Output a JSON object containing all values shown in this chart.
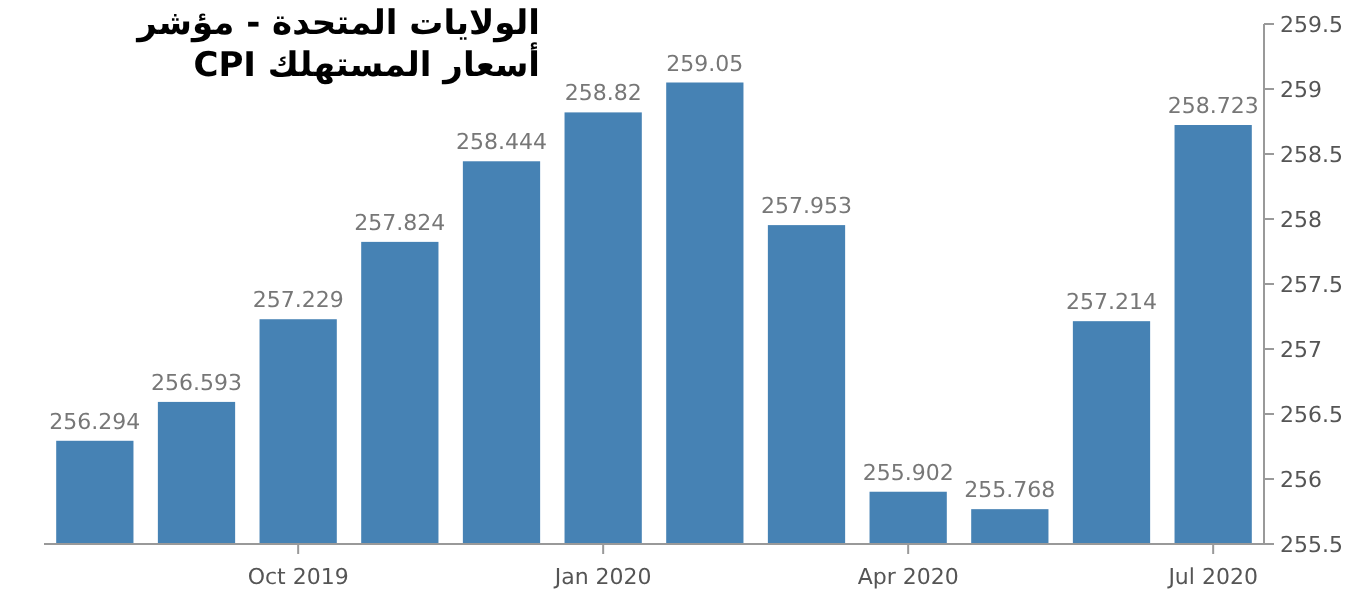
{
  "chart_data": {
    "type": "bar",
    "title": "الولايات المتحدة - مؤشر أسعار المستهلك CPI",
    "categories": [
      null,
      null,
      "Oct 2019",
      null,
      null,
      "Jan 2020",
      null,
      null,
      "Apr 2020",
      null,
      null,
      "Jul 2020"
    ],
    "values": [
      256.294,
      256.593,
      257.229,
      257.824,
      258.444,
      258.82,
      259.05,
      257.953,
      255.902,
      255.768,
      257.214,
      258.723
    ],
    "color": "#4682b4",
    "data_labels": true,
    "ylim": [
      255.5,
      259.5
    ],
    "yticks": [
      255.5,
      256,
      256.5,
      257,
      257.5,
      258,
      258.5,
      259,
      259.5
    ],
    "grid": false
  }
}
